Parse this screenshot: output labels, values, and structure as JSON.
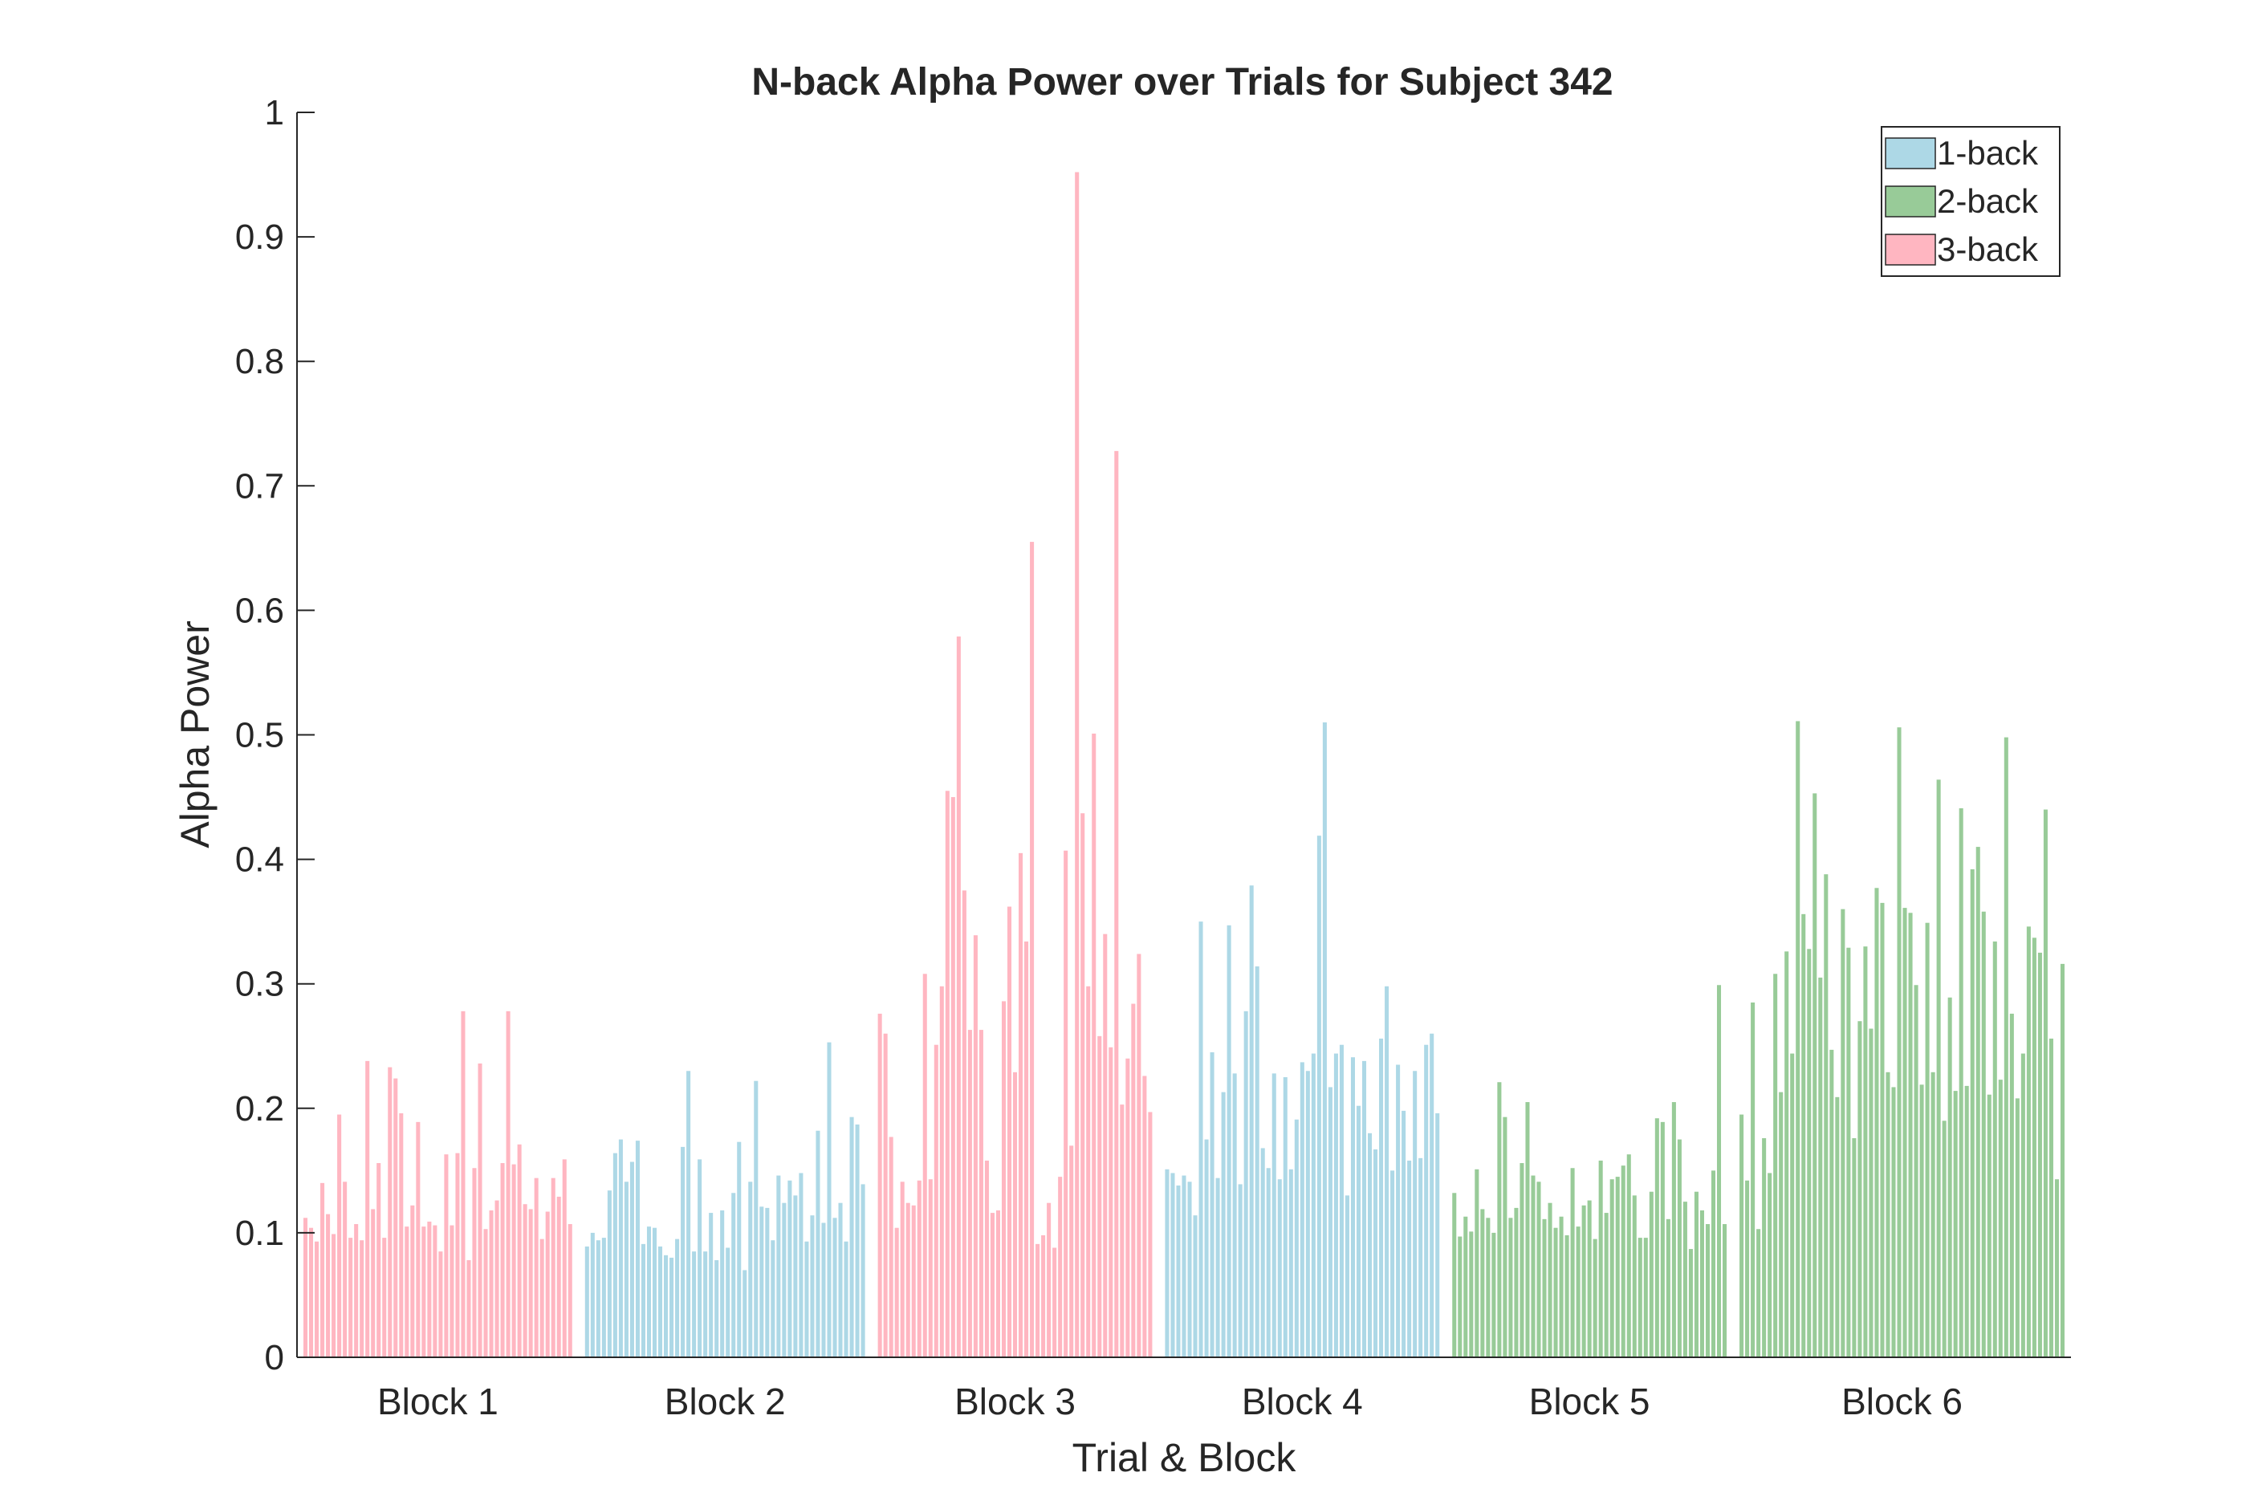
{
  "chart_data": {
    "type": "bar",
    "title": "N-back Alpha Power over Trials for Subject 342",
    "xlabel": "Trial & Block",
    "ylabel": "Alpha Power",
    "ylim": [
      0,
      1
    ],
    "yticks": [
      0,
      0.1,
      0.2,
      0.3,
      0.4,
      0.5,
      0.6,
      0.7,
      0.8,
      0.9,
      1
    ],
    "ytick_labels": [
      "0",
      "0.1",
      "0.2",
      "0.3",
      "0.4",
      "0.5",
      "0.6",
      "0.7",
      "0.8",
      "0.9",
      "1"
    ],
    "legend_position": "top-right",
    "grid": false,
    "legend": [
      {
        "label": "1-back",
        "color": "#add8e6"
      },
      {
        "label": "2-back",
        "color": "#98cb98"
      },
      {
        "label": "3-back",
        "color": "#ffb6c1"
      }
    ],
    "blocks": [
      {
        "label": "Block 1",
        "condition": "3-back",
        "color": "#ffb6c1",
        "values": [
          0.112,
          0.104,
          0.093,
          0.14,
          0.115,
          0.099,
          0.195,
          0.141,
          0.096,
          0.107,
          0.094,
          0.238,
          0.119,
          0.156,
          0.096,
          0.233,
          0.224,
          0.196,
          0.105,
          0.122,
          0.189,
          0.105,
          0.109,
          0.106,
          0.085,
          0.163,
          0.106,
          0.164,
          0.278,
          0.078,
          0.152,
          0.236,
          0.103,
          0.118,
          0.126,
          0.156,
          0.278,
          0.155,
          0.171,
          0.123,
          0.119,
          0.144,
          0.095,
          0.117,
          0.144,
          0.129,
          0.159,
          0.107
        ]
      },
      {
        "label": "Block 2",
        "condition": "1-back",
        "color": "#add8e6",
        "values": [
          0.089,
          0.1,
          0.094,
          0.096,
          0.134,
          0.164,
          0.175,
          0.141,
          0.157,
          0.174,
          0.091,
          0.105,
          0.104,
          0.089,
          0.082,
          0.08,
          0.095,
          0.169,
          0.23,
          0.085,
          0.159,
          0.085,
          0.116,
          0.078,
          0.118,
          0.088,
          0.132,
          0.173,
          0.07,
          0.141,
          0.222,
          0.121,
          0.12,
          0.094,
          0.146,
          0.124,
          0.142,
          0.13,
          0.148,
          0.093,
          0.114,
          0.182,
          0.108,
          0.253,
          0.112,
          0.124,
          0.093,
          0.193,
          0.187,
          0.139
        ]
      },
      {
        "label": "Block 3",
        "condition": "3-back",
        "color": "#ffb6c1",
        "values": [
          0.276,
          0.26,
          0.177,
          0.104,
          0.141,
          0.124,
          0.122,
          0.142,
          0.308,
          0.143,
          0.251,
          0.298,
          0.455,
          0.45,
          0.579,
          0.375,
          0.263,
          0.339,
          0.263,
          0.158,
          0.116,
          0.118,
          0.286,
          0.362,
          0.229,
          0.405,
          0.334,
          0.655,
          0.091,
          0.098,
          0.124,
          0.088,
          0.145,
          0.407,
          0.17,
          0.952,
          0.437,
          0.298,
          0.501,
          0.258,
          0.34,
          0.249,
          0.728,
          0.203,
          0.24,
          0.284,
          0.324,
          0.226,
          0.197
        ]
      },
      {
        "label": "Block 4",
        "condition": "1-back",
        "color": "#add8e6",
        "values": [
          0.151,
          0.148,
          0.138,
          0.146,
          0.141,
          0.114,
          0.35,
          0.175,
          0.245,
          0.144,
          0.213,
          0.347,
          0.228,
          0.139,
          0.278,
          0.379,
          0.314,
          0.168,
          0.152,
          0.228,
          0.143,
          0.225,
          0.151,
          0.191,
          0.237,
          0.23,
          0.244,
          0.419,
          0.51,
          0.217,
          0.244,
          0.251,
          0.13,
          0.241,
          0.202,
          0.238,
          0.18,
          0.167,
          0.256,
          0.298,
          0.15,
          0.235,
          0.198,
          0.158,
          0.23,
          0.16,
          0.251,
          0.26,
          0.196
        ]
      },
      {
        "label": "Block 5",
        "condition": "2-back",
        "color": "#98cb98",
        "values": [
          0.132,
          0.097,
          0.113,
          0.101,
          0.151,
          0.119,
          0.112,
          0.1,
          0.221,
          0.193,
          0.112,
          0.12,
          0.156,
          0.205,
          0.146,
          0.141,
          0.111,
          0.124,
          0.104,
          0.113,
          0.098,
          0.152,
          0.105,
          0.122,
          0.126,
          0.095,
          0.158,
          0.116,
          0.143,
          0.145,
          0.154,
          0.163,
          0.13,
          0.096,
          0.096,
          0.133,
          0.192,
          0.189,
          0.111,
          0.205,
          0.175,
          0.125,
          0.087,
          0.133,
          0.118,
          0.107,
          0.15,
          0.299,
          0.107
        ]
      },
      {
        "label": "Block 6",
        "condition": "2-back",
        "color": "#98cb98",
        "values": [
          0.195,
          0.142,
          0.285,
          0.103,
          0.176,
          0.148,
          0.308,
          0.213,
          0.326,
          0.244,
          0.511,
          0.356,
          0.328,
          0.453,
          0.305,
          0.388,
          0.247,
          0.209,
          0.36,
          0.329,
          0.176,
          0.27,
          0.33,
          0.264,
          0.377,
          0.365,
          0.229,
          0.217,
          0.506,
          0.361,
          0.357,
          0.299,
          0.219,
          0.349,
          0.229,
          0.464,
          0.19,
          0.289,
          0.214,
          0.441,
          0.218,
          0.392,
          0.41,
          0.358,
          0.211,
          0.334,
          0.223,
          0.498,
          0.276,
          0.208,
          0.244,
          0.346,
          0.337,
          0.325,
          0.44,
          0.256,
          0.143,
          0.316
        ]
      }
    ]
  }
}
